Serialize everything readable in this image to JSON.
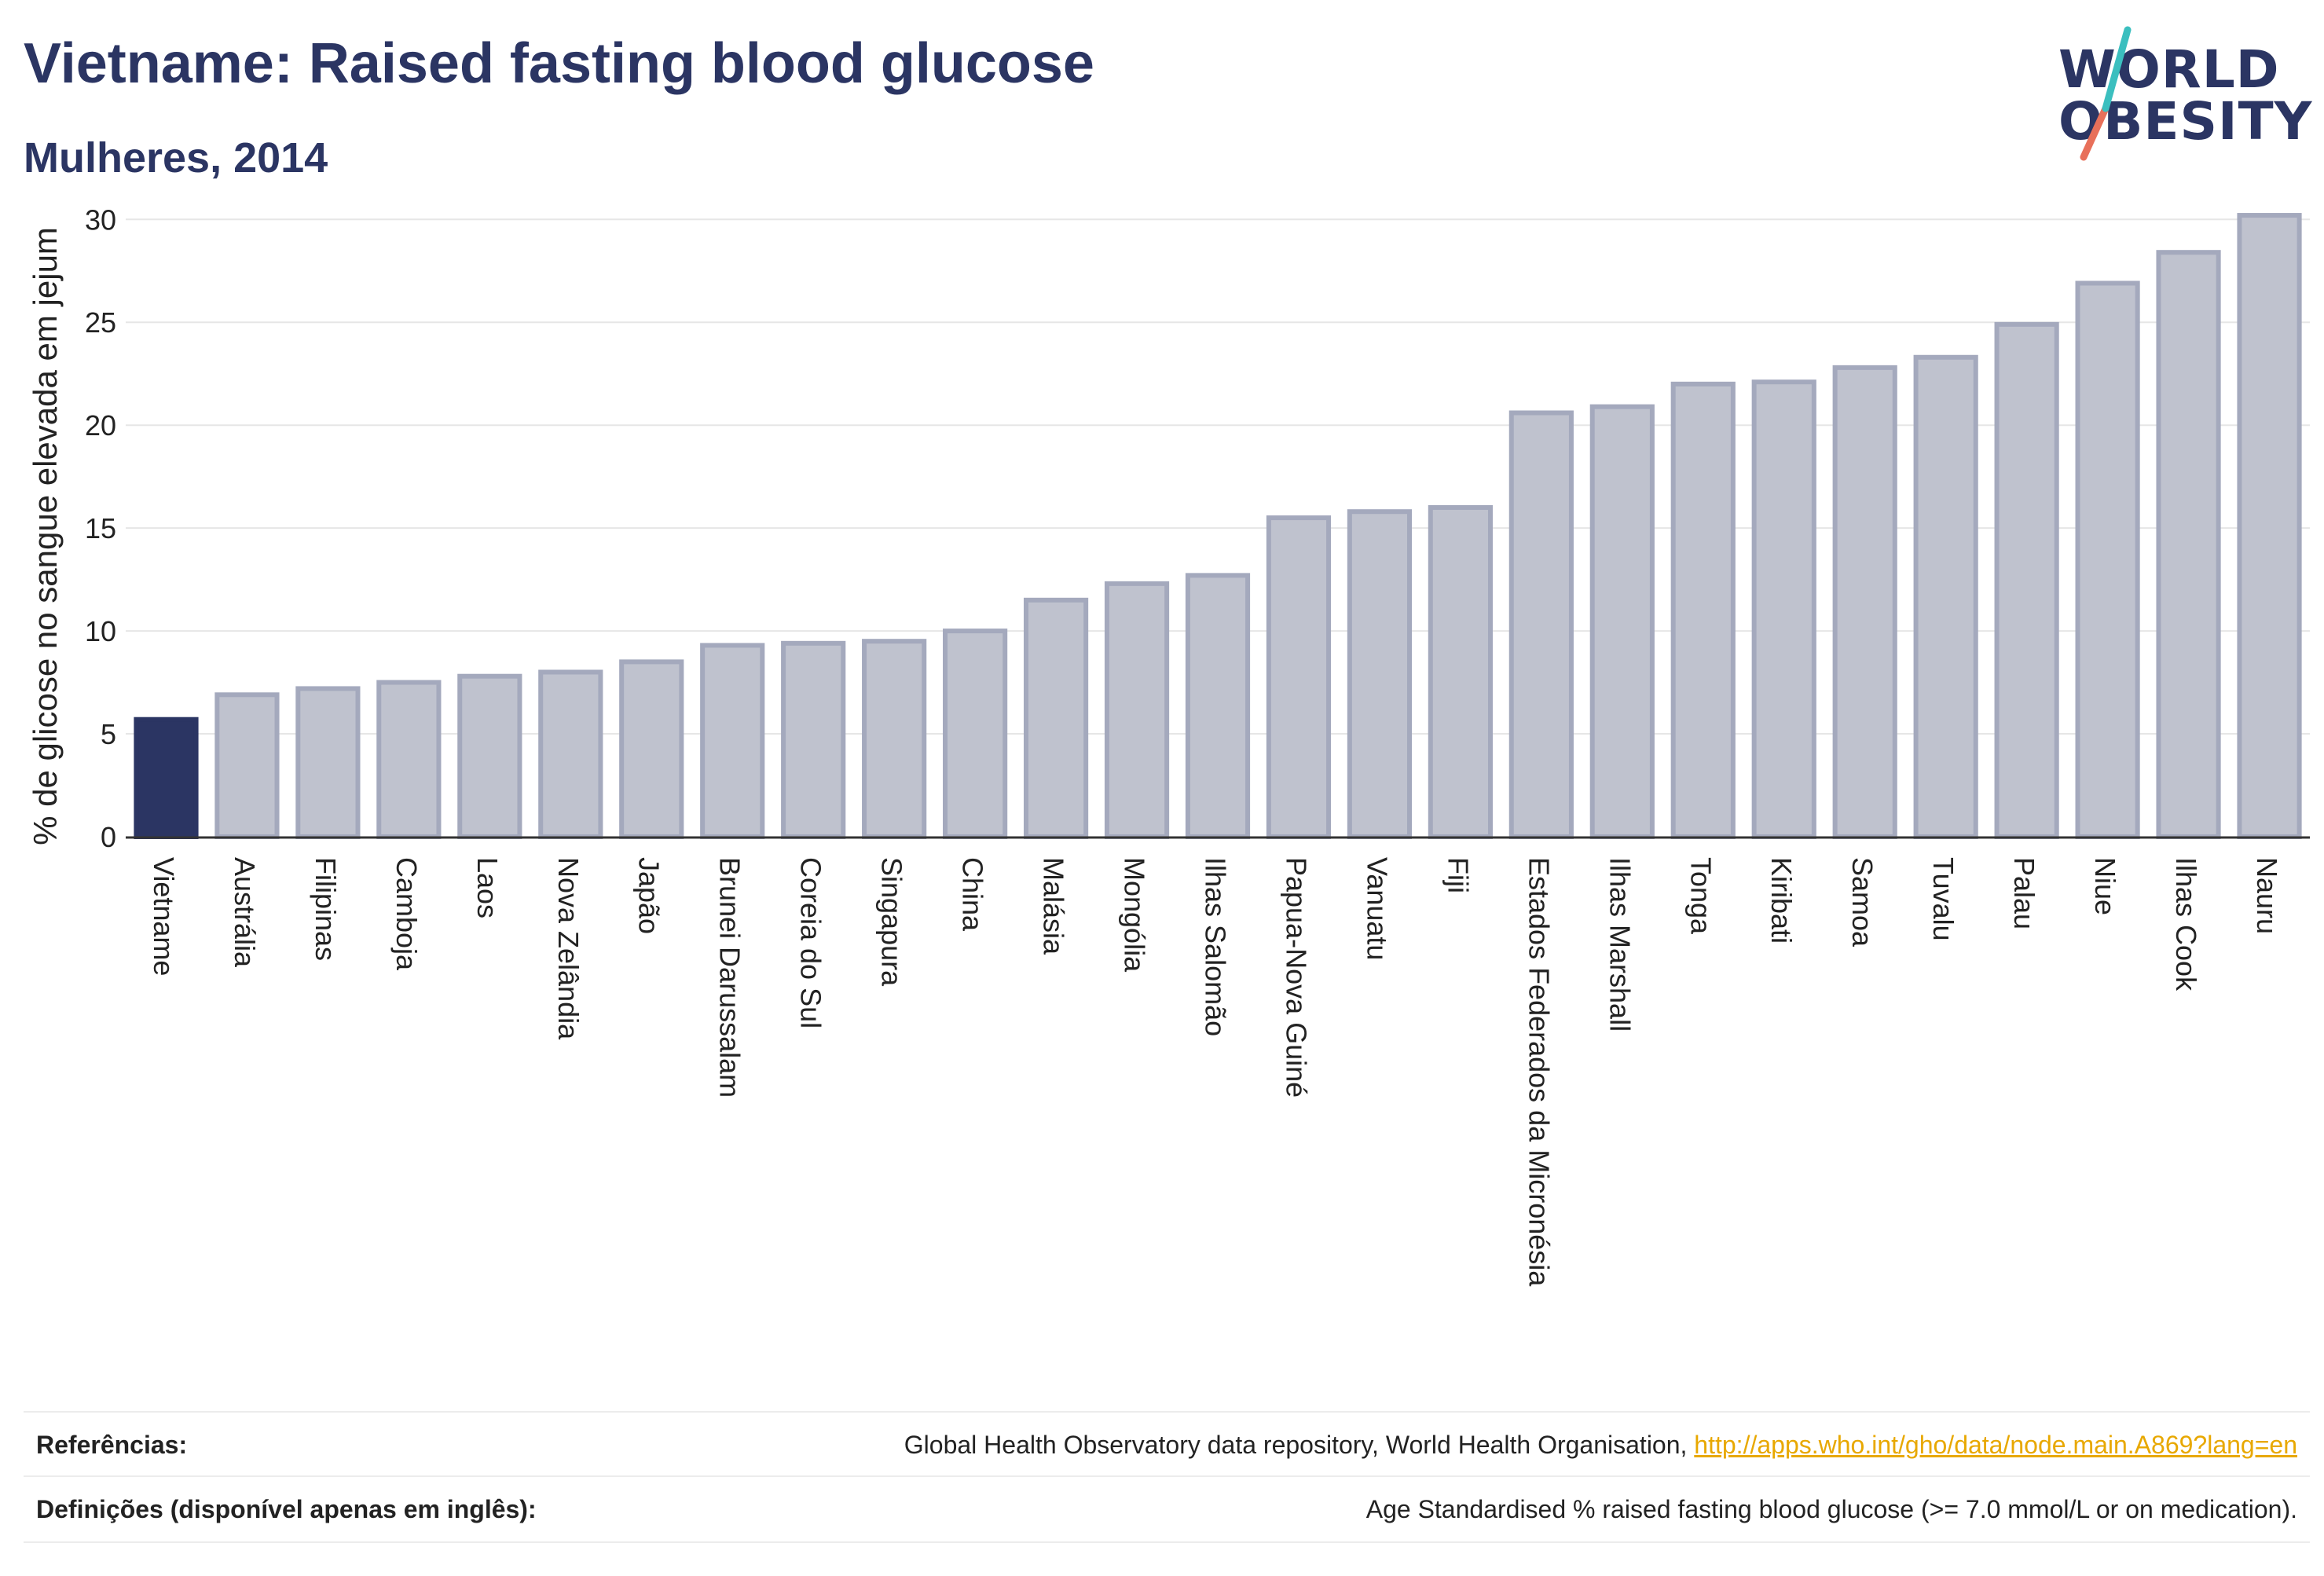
{
  "header": {
    "title": "Vietname: Raised fasting blood glucose",
    "subtitle": "Mulheres, 2014"
  },
  "logo": {
    "line1": "WORLD",
    "line2": "OBESITY",
    "slash_colors": [
      "#e8705a",
      "#3bbfbf"
    ]
  },
  "chart_data": {
    "type": "bar",
    "title": "Vietname: Raised fasting blood glucose",
    "subtitle": "Mulheres, 2014",
    "xlabel": "",
    "ylabel": "% de glicose no sangue elevada em jejum",
    "ylim": [
      0,
      31.5
    ],
    "yticks": [
      0,
      5,
      10,
      15,
      20,
      25,
      30
    ],
    "grid": true,
    "highlight_category": "Vietname",
    "colors": {
      "highlight": "#2b3563",
      "bar_fill": "#bfc2ce",
      "bar_stroke": "#a4a9bd"
    },
    "categories": [
      "Vietname",
      "Austrália",
      "Filipinas",
      "Camboja",
      "Laos",
      "Nova Zelândia",
      "Japão",
      "Brunei Darussalam",
      "Coreia do Sul",
      "Singapura",
      "China",
      "Malásia",
      "Mongólia",
      "Ilhas Salomão",
      "Papua-Nova Guiné",
      "Vanuatu",
      "Fiji",
      "Estados Federados da Micronésia",
      "Ilhas Marshall",
      "Tonga",
      "Kiribati",
      "Samoa",
      "Tuvalu",
      "Palau",
      "Niue",
      "Ilhas Cook",
      "Nauru"
    ],
    "values": [
      5.7,
      6.9,
      7.2,
      7.5,
      7.8,
      8.0,
      8.5,
      9.3,
      9.4,
      9.5,
      10.0,
      11.5,
      12.3,
      12.7,
      15.5,
      15.8,
      16.0,
      20.6,
      20.9,
      22.0,
      22.1,
      22.8,
      23.3,
      24.9,
      26.9,
      28.4,
      30.2
    ]
  },
  "footer": {
    "references_label": "Referências:",
    "references_text": "Global Health Observatory data repository, World Health Organisation, ",
    "references_link": "http://apps.who.int/gho/data/node.main.A869?lang=en",
    "definitions_label": "Definições (disponível apenas em inglês):",
    "definitions_text": "Age Standardised % raised fasting blood glucose (>= 7.0 mmol/L or on medication)."
  }
}
